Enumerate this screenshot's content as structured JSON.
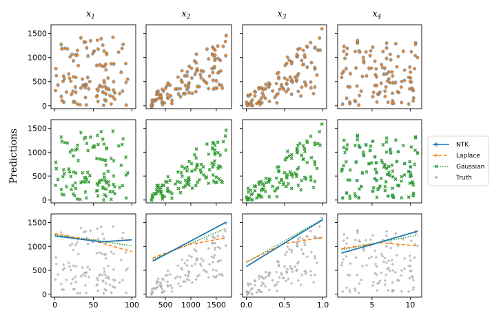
{
  "figure": {
    "ylabel": "Predictions",
    "columns": [
      {
        "var": "x",
        "sub": "1"
      },
      {
        "var": "x",
        "sub": "2"
      },
      {
        "var": "x",
        "sub": "3"
      },
      {
        "var": "x",
        "sub": "4"
      }
    ]
  },
  "legend": {
    "entries": [
      {
        "label": "NTK",
        "color": "#1f77b4",
        "style": "solid-line-circle"
      },
      {
        "label": "Laplace",
        "color": "#ff7f0e",
        "style": "dashed-line-plus"
      },
      {
        "label": "Gaussian",
        "color": "#2ca02c",
        "style": "dotted-line-x"
      },
      {
        "label": "Truth",
        "color": "#aaaaaa",
        "style": "diamond"
      }
    ]
  },
  "chart_data": {
    "type": "scatter",
    "title": "",
    "ylabel": "Predictions",
    "ylim": [
      -60,
      1680
    ],
    "yticks": [
      0,
      500,
      1000,
      1500
    ],
    "columns": [
      {
        "name": "x1",
        "xlim": [
          -5,
          105
        ],
        "xticks": [
          0,
          50,
          100
        ],
        "curves": {
          "NTK": [
            [
              0,
              1220
            ],
            [
              60,
              1095
            ],
            [
              100,
              1140
            ]
          ],
          "Laplace": [
            [
              0,
              1270
            ],
            [
              50,
              1120
            ],
            [
              100,
              890
            ]
          ],
          "Gaussian": [
            [
              0,
              1240
            ],
            [
              50,
              1140
            ],
            [
              100,
              1010
            ]
          ]
        }
      },
      {
        "name": "x2",
        "xlim": [
          120,
          1800
        ],
        "xticks": [
          500,
          1000,
          1500
        ],
        "curves": {
          "NTK": [
            [
              250,
              690
            ],
            [
              1700,
              1510
            ]
          ],
          "Laplace": [
            [
              250,
              760
            ],
            [
              1000,
              1050
            ],
            [
              1700,
              1180
            ]
          ],
          "Gaussian": [
            [
              250,
              730
            ],
            [
              1700,
              1380
            ]
          ]
        }
      },
      {
        "name": "x3",
        "xlim": [
          -0.05,
          1.05
        ],
        "xticks": [
          0.0,
          0.5,
          1.0
        ],
        "curves": {
          "NTK": [
            [
              0.0,
              580
            ],
            [
              1.0,
              1560
            ]
          ],
          "Laplace": [
            [
              0.0,
              680
            ],
            [
              0.5,
              1060
            ],
            [
              1.0,
              1190
            ]
          ],
          "Gaussian": [
            [
              0.0,
              660
            ],
            [
              1.0,
              1570
            ]
          ]
        }
      },
      {
        "name": "x4",
        "xlim": [
          0.5,
          11.5
        ],
        "xticks": [
          5,
          10
        ],
        "curves": {
          "NTK": [
            [
              1,
              860
            ],
            [
              5,
              1040
            ],
            [
              11,
              1320
            ]
          ],
          "Laplace": [
            [
              1,
              950
            ],
            [
              6,
              1080
            ],
            [
              11,
              1010
            ]
          ],
          "Gaussian": [
            [
              1,
              930
            ],
            [
              11,
              1240
            ]
          ]
        }
      }
    ],
    "rows": [
      {
        "row": 1,
        "series": [
          "Truth",
          "NTK",
          "Laplace"
        ]
      },
      {
        "row": 2,
        "series": [
          "Truth",
          "NTK",
          "Gaussian"
        ]
      },
      {
        "row": 3,
        "series": [
          "Truth",
          "NTK curve",
          "Laplace curve",
          "Gaussian curve"
        ]
      }
    ]
  }
}
